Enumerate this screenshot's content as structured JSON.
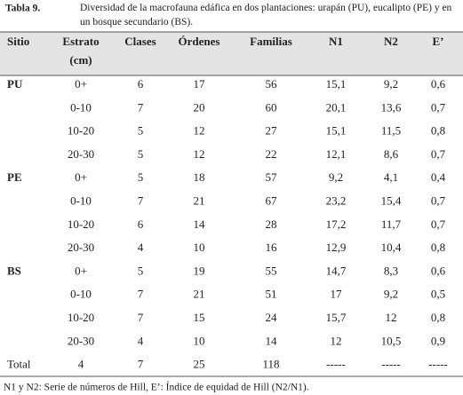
{
  "caption": {
    "label": "Tabla 9.",
    "text": "Diversidad de la macrofauna edáfica en dos plantaciones: urapán (PU), eucalipto (PE) y en un bosque secundario (BS)."
  },
  "table": {
    "headers": [
      [
        "Sitio"
      ],
      [
        "Estrato",
        "(cm)"
      ],
      [
        "Clases"
      ],
      [
        "Órdenes"
      ],
      [
        "Familias"
      ],
      [
        "N1"
      ],
      [
        "N2"
      ],
      [
        "E’"
      ]
    ],
    "groups": [
      {
        "sitio": "PU",
        "rows": [
          [
            "0+",
            "6",
            "17",
            "56",
            "15,1",
            "9,2",
            "0,6"
          ],
          [
            "0-10",
            "7",
            "20",
            "60",
            "20,1",
            "13,6",
            "0,7"
          ],
          [
            "10-20",
            "5",
            "12",
            "27",
            "15,1",
            "11,5",
            "0,8"
          ],
          [
            "20-30",
            "5",
            "12",
            "22",
            "12,1",
            "8,6",
            "0,7"
          ]
        ]
      },
      {
        "sitio": "PE",
        "rows": [
          [
            "0+",
            "5",
            "18",
            "57",
            "9,2",
            "4,1",
            "0,4"
          ],
          [
            "0-10",
            "7",
            "21",
            "67",
            "23,2",
            "15,4",
            "0,7"
          ],
          [
            "10-20",
            "6",
            "14",
            "28",
            "17,2",
            "11,7",
            "0,7"
          ],
          [
            "20-30",
            "4",
            "10",
            "16",
            "12,9",
            "10,4",
            "0,8"
          ]
        ]
      },
      {
        "sitio": "BS",
        "rows": [
          [
            "0+",
            "5",
            "19",
            "55",
            "14,7",
            "8,3",
            "0,6"
          ],
          [
            "0-10",
            "7",
            "21",
            "51",
            "17",
            "9,2",
            "0,5"
          ],
          [
            "10-20",
            "7",
            "15",
            "24",
            "15,7",
            "12",
            "0,8"
          ],
          [
            "20-30",
            "4",
            "10",
            "14",
            "12",
            "10,5",
            "0,9"
          ]
        ]
      }
    ],
    "total": {
      "label": "Total",
      "cells": [
        "4",
        "7",
        "25",
        "118",
        "-----",
        "-----",
        "-----"
      ]
    }
  },
  "footnote": "N1 y N2: Serie de números de Hill, E’: Índice de equidad de Hill (N2/N1)."
}
